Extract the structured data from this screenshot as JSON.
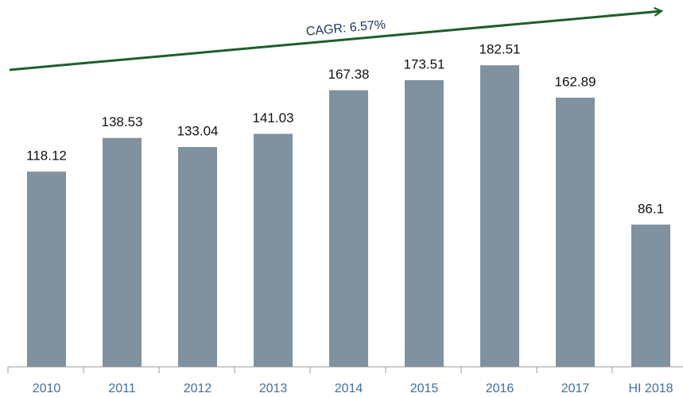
{
  "chart_data": {
    "type": "bar",
    "categories": [
      "2010",
      "2011",
      "2012",
      "2013",
      "2014",
      "2015",
      "2016",
      "2017",
      "HI 2018"
    ],
    "values": [
      118.12,
      138.53,
      133.04,
      141.03,
      167.38,
      173.51,
      182.51,
      162.89,
      86.1
    ],
    "color": "#8091a0",
    "ylim": [
      0,
      222
    ],
    "annotations": [
      "CAGR: 6.57%"
    ]
  }
}
